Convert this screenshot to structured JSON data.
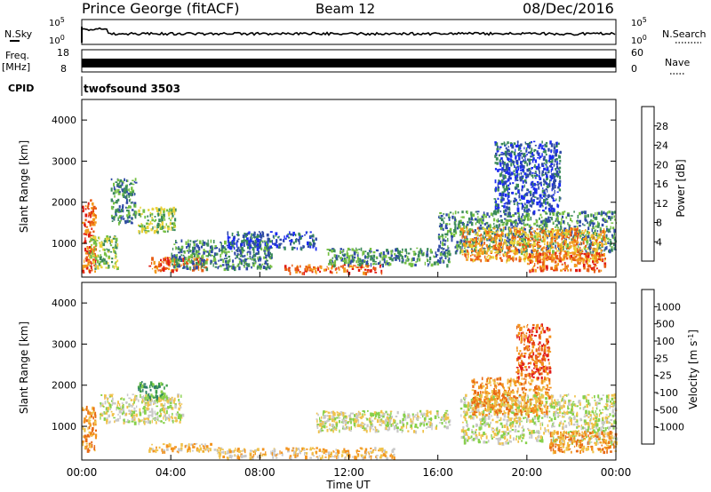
{
  "header": {
    "station": "Prince George (fitACF)",
    "beam": "Beam 12",
    "date": "08/Dec/2016"
  },
  "strips": {
    "nsky_label": "N.Sky",
    "nsearch_label": "N.Search",
    "freq_label_1": "Freq.",
    "freq_label_2": "[MHz]",
    "nave_label": "Nave",
    "cpid_label": "CPID",
    "cpid_value": "twofsound 3503",
    "noise_ticks_left": [
      "10^5",
      "10^0"
    ],
    "noise_ticks_right": [
      "10^5",
      "10^0"
    ],
    "freq_ticks": [
      "18",
      "8"
    ],
    "nave_ticks": [
      "60",
      "0"
    ]
  },
  "chart_data": [
    {
      "type": "heatmap",
      "name": "power",
      "ylabel": "Slant Range [km]",
      "ylim": [
        180,
        4500
      ],
      "yticks": [
        1000,
        2000,
        3000,
        4000
      ],
      "xlim": [
        0,
        24
      ],
      "colorbar": {
        "label": "Power [dB]",
        "ticks": [
          "4",
          "8",
          "12",
          "16",
          "20",
          "24",
          "28"
        ],
        "colors": [
          "#1c2cf0",
          "#2f4aa6",
          "#3b8a5a",
          "#76c043",
          "#e9d23a",
          "#f39a1d",
          "#e85b13",
          "#e11b11"
        ]
      },
      "regions": [
        {
          "t0": 0.0,
          "t1": 0.6,
          "r0": 300,
          "r1": 2100,
          "level": 6
        },
        {
          "t0": 0.3,
          "t1": 1.6,
          "r0": 400,
          "r1": 1200,
          "level": 3
        },
        {
          "t0": 1.3,
          "t1": 2.4,
          "r0": 1500,
          "r1": 2600,
          "level": 2
        },
        {
          "t0": 2.5,
          "t1": 4.2,
          "r0": 1300,
          "r1": 1900,
          "level": 3
        },
        {
          "t0": 3.0,
          "t1": 5.6,
          "r0": 350,
          "r1": 700,
          "level": 6
        },
        {
          "t0": 4.0,
          "t1": 8.5,
          "r0": 400,
          "r1": 1100,
          "level": 2
        },
        {
          "t0": 6.5,
          "t1": 10.5,
          "r0": 900,
          "r1": 1300,
          "level": 1
        },
        {
          "t0": 9.0,
          "t1": 13.5,
          "r0": 300,
          "r1": 500,
          "level": 6
        },
        {
          "t0": 11.0,
          "t1": 16.5,
          "r0": 500,
          "r1": 900,
          "level": 2
        },
        {
          "t0": 16.0,
          "t1": 24.0,
          "r0": 800,
          "r1": 1800,
          "level": 2
        },
        {
          "t0": 17.0,
          "t1": 23.5,
          "r0": 600,
          "r1": 1400,
          "level": 5
        },
        {
          "t0": 20.0,
          "t1": 23.5,
          "r0": 350,
          "r1": 800,
          "level": 6
        },
        {
          "t0": 18.5,
          "t1": 21.5,
          "r0": 1800,
          "r1": 3500,
          "level": 1
        }
      ]
    },
    {
      "type": "heatmap",
      "name": "velocity",
      "xlabel": "Time UT",
      "ylabel": "Slant Range [km]",
      "ylim": [
        180,
        4500
      ],
      "yticks": [
        1000,
        2000,
        3000,
        4000
      ],
      "xlim": [
        0,
        24
      ],
      "xticks": [
        "00:00",
        "04:00",
        "08:00",
        "12:00",
        "16:00",
        "20:00",
        "00:00"
      ],
      "colorbar": {
        "label": "Velocity [m s^-1]",
        "ticks": [
          "1000",
          "500",
          "100",
          "25",
          "-25",
          "-100",
          "-500",
          "-1000"
        ],
        "colors": [
          "#2a39d6",
          "#2e7a6a",
          "#3da04a",
          "#86d04a",
          "#c8c8c8",
          "#f0c24a",
          "#f3931e",
          "#e86a14",
          "#e21a1a"
        ]
      },
      "regions": [
        {
          "t0": 0.0,
          "t1": 0.6,
          "r0": 400,
          "r1": 1500,
          "level": 6
        },
        {
          "t0": 0.8,
          "t1": 4.5,
          "r0": 1100,
          "r1": 1800,
          "level": 4
        },
        {
          "t0": 2.5,
          "t1": 3.8,
          "r0": 1700,
          "r1": 2100,
          "level": 2
        },
        {
          "t0": 3.0,
          "t1": 6.0,
          "r0": 400,
          "r1": 600,
          "level": 5
        },
        {
          "t0": 6.0,
          "t1": 14.0,
          "r0": 250,
          "r1": 500,
          "level": 5
        },
        {
          "t0": 10.5,
          "t1": 16.5,
          "r0": 900,
          "r1": 1400,
          "level": 4
        },
        {
          "t0": 17.0,
          "t1": 24.0,
          "r0": 600,
          "r1": 1800,
          "level": 4
        },
        {
          "t0": 17.5,
          "t1": 21.0,
          "r0": 1300,
          "r1": 2200,
          "level": 6
        },
        {
          "t0": 19.5,
          "t1": 21.0,
          "r0": 2200,
          "r1": 3500,
          "level": 7
        },
        {
          "t0": 21.0,
          "t1": 24.0,
          "r0": 400,
          "r1": 900,
          "level": 6
        }
      ]
    }
  ]
}
